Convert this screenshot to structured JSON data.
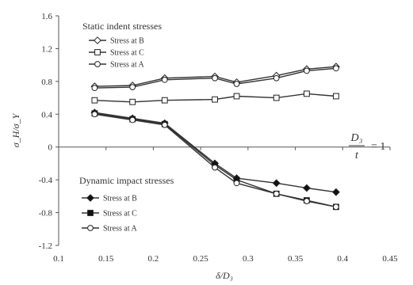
{
  "chart_data": {
    "type": "line",
    "xlabel": "δ/D₃",
    "ylabel": "σ_H/σ_Y",
    "xlim": [
      0.1,
      0.45
    ],
    "ylim": [
      -1.2,
      1.6
    ],
    "x_ticks": [
      "0.1",
      "0.15",
      "0.2",
      "0.25",
      "0.3",
      "0.35",
      "0.4",
      "0.45"
    ],
    "y_ticks": [
      "-1.2",
      "-0.8",
      "-0.4",
      "0",
      "0.4",
      "0.8",
      "1.2",
      "1.6"
    ],
    "grid": false,
    "annotation": {
      "numerator": "D₃",
      "denominator": "t",
      "rhs": "= 1"
    },
    "static_group": {
      "title": "Static indent stresses",
      "series": [
        {
          "name": "Stress at B",
          "marker": "diamond-open",
          "x": [
            0.138,
            0.178,
            0.212,
            0.265,
            0.288,
            0.33,
            0.362,
            0.393
          ],
          "y": [
            0.74,
            0.75,
            0.84,
            0.86,
            0.79,
            0.87,
            0.95,
            0.98
          ]
        },
        {
          "name": "Stress at C",
          "marker": "square-open",
          "x": [
            0.138,
            0.178,
            0.212,
            0.265,
            0.288,
            0.33,
            0.362,
            0.393
          ],
          "y": [
            0.57,
            0.55,
            0.57,
            0.58,
            0.62,
            0.6,
            0.65,
            0.62
          ]
        },
        {
          "name": "Stress at A",
          "marker": "circle-open",
          "x": [
            0.138,
            0.178,
            0.212,
            0.265,
            0.288,
            0.33,
            0.362,
            0.393
          ],
          "y": [
            0.72,
            0.73,
            0.82,
            0.84,
            0.77,
            0.84,
            0.93,
            0.96
          ]
        }
      ]
    },
    "dynamic_group": {
      "title": "Dynamic impact stresses",
      "series": [
        {
          "name": "Stress at B",
          "marker": "diamond-filled",
          "x": [
            0.138,
            0.178,
            0.212,
            0.265,
            0.288,
            0.33,
            0.362,
            0.393
          ],
          "y": [
            0.42,
            0.35,
            0.29,
            -0.2,
            -0.38,
            -0.44,
            -0.5,
            -0.55
          ]
        },
        {
          "name": "Stress at C",
          "marker": "square-filled",
          "x": [
            0.138,
            0.178,
            0.212,
            0.265,
            0.288,
            0.33,
            0.362,
            0.393
          ],
          "y": [
            0.41,
            0.34,
            0.28,
            -0.22,
            -0.4,
            -0.57,
            -0.65,
            -0.73
          ]
        },
        {
          "name": "Stress at A",
          "marker": "circle-open",
          "x": [
            0.138,
            0.178,
            0.212,
            0.265,
            0.288,
            0.33,
            0.362,
            0.393
          ],
          "y": [
            0.4,
            0.33,
            0.27,
            -0.25,
            -0.44,
            -0.57,
            -0.66,
            -0.73
          ]
        }
      ]
    }
  }
}
